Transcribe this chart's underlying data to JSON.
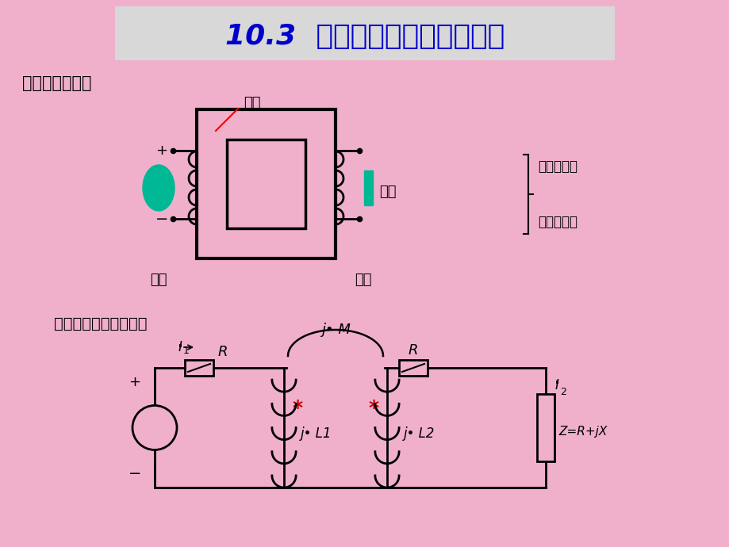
{
  "bg_color": "#f0b0cc",
  "title_text": "10.3  空心变压器和理想变压器",
  "title_bg": "#d8d8d8",
  "title_color": "#0000cc",
  "title_fontsize": 26,
  "sec1": "一、空心变压器",
  "xinzi": "芝子",
  "fuza": "负载",
  "yuanbian": "原边",
  "fubian": "副边",
  "tixin": "鐵心变压器",
  "kongxin": "空心变压器",
  "circuit_model": "空心变压器的电路模型",
  "green": "#00b894",
  "black": "#000000",
  "red": "#cc0000"
}
